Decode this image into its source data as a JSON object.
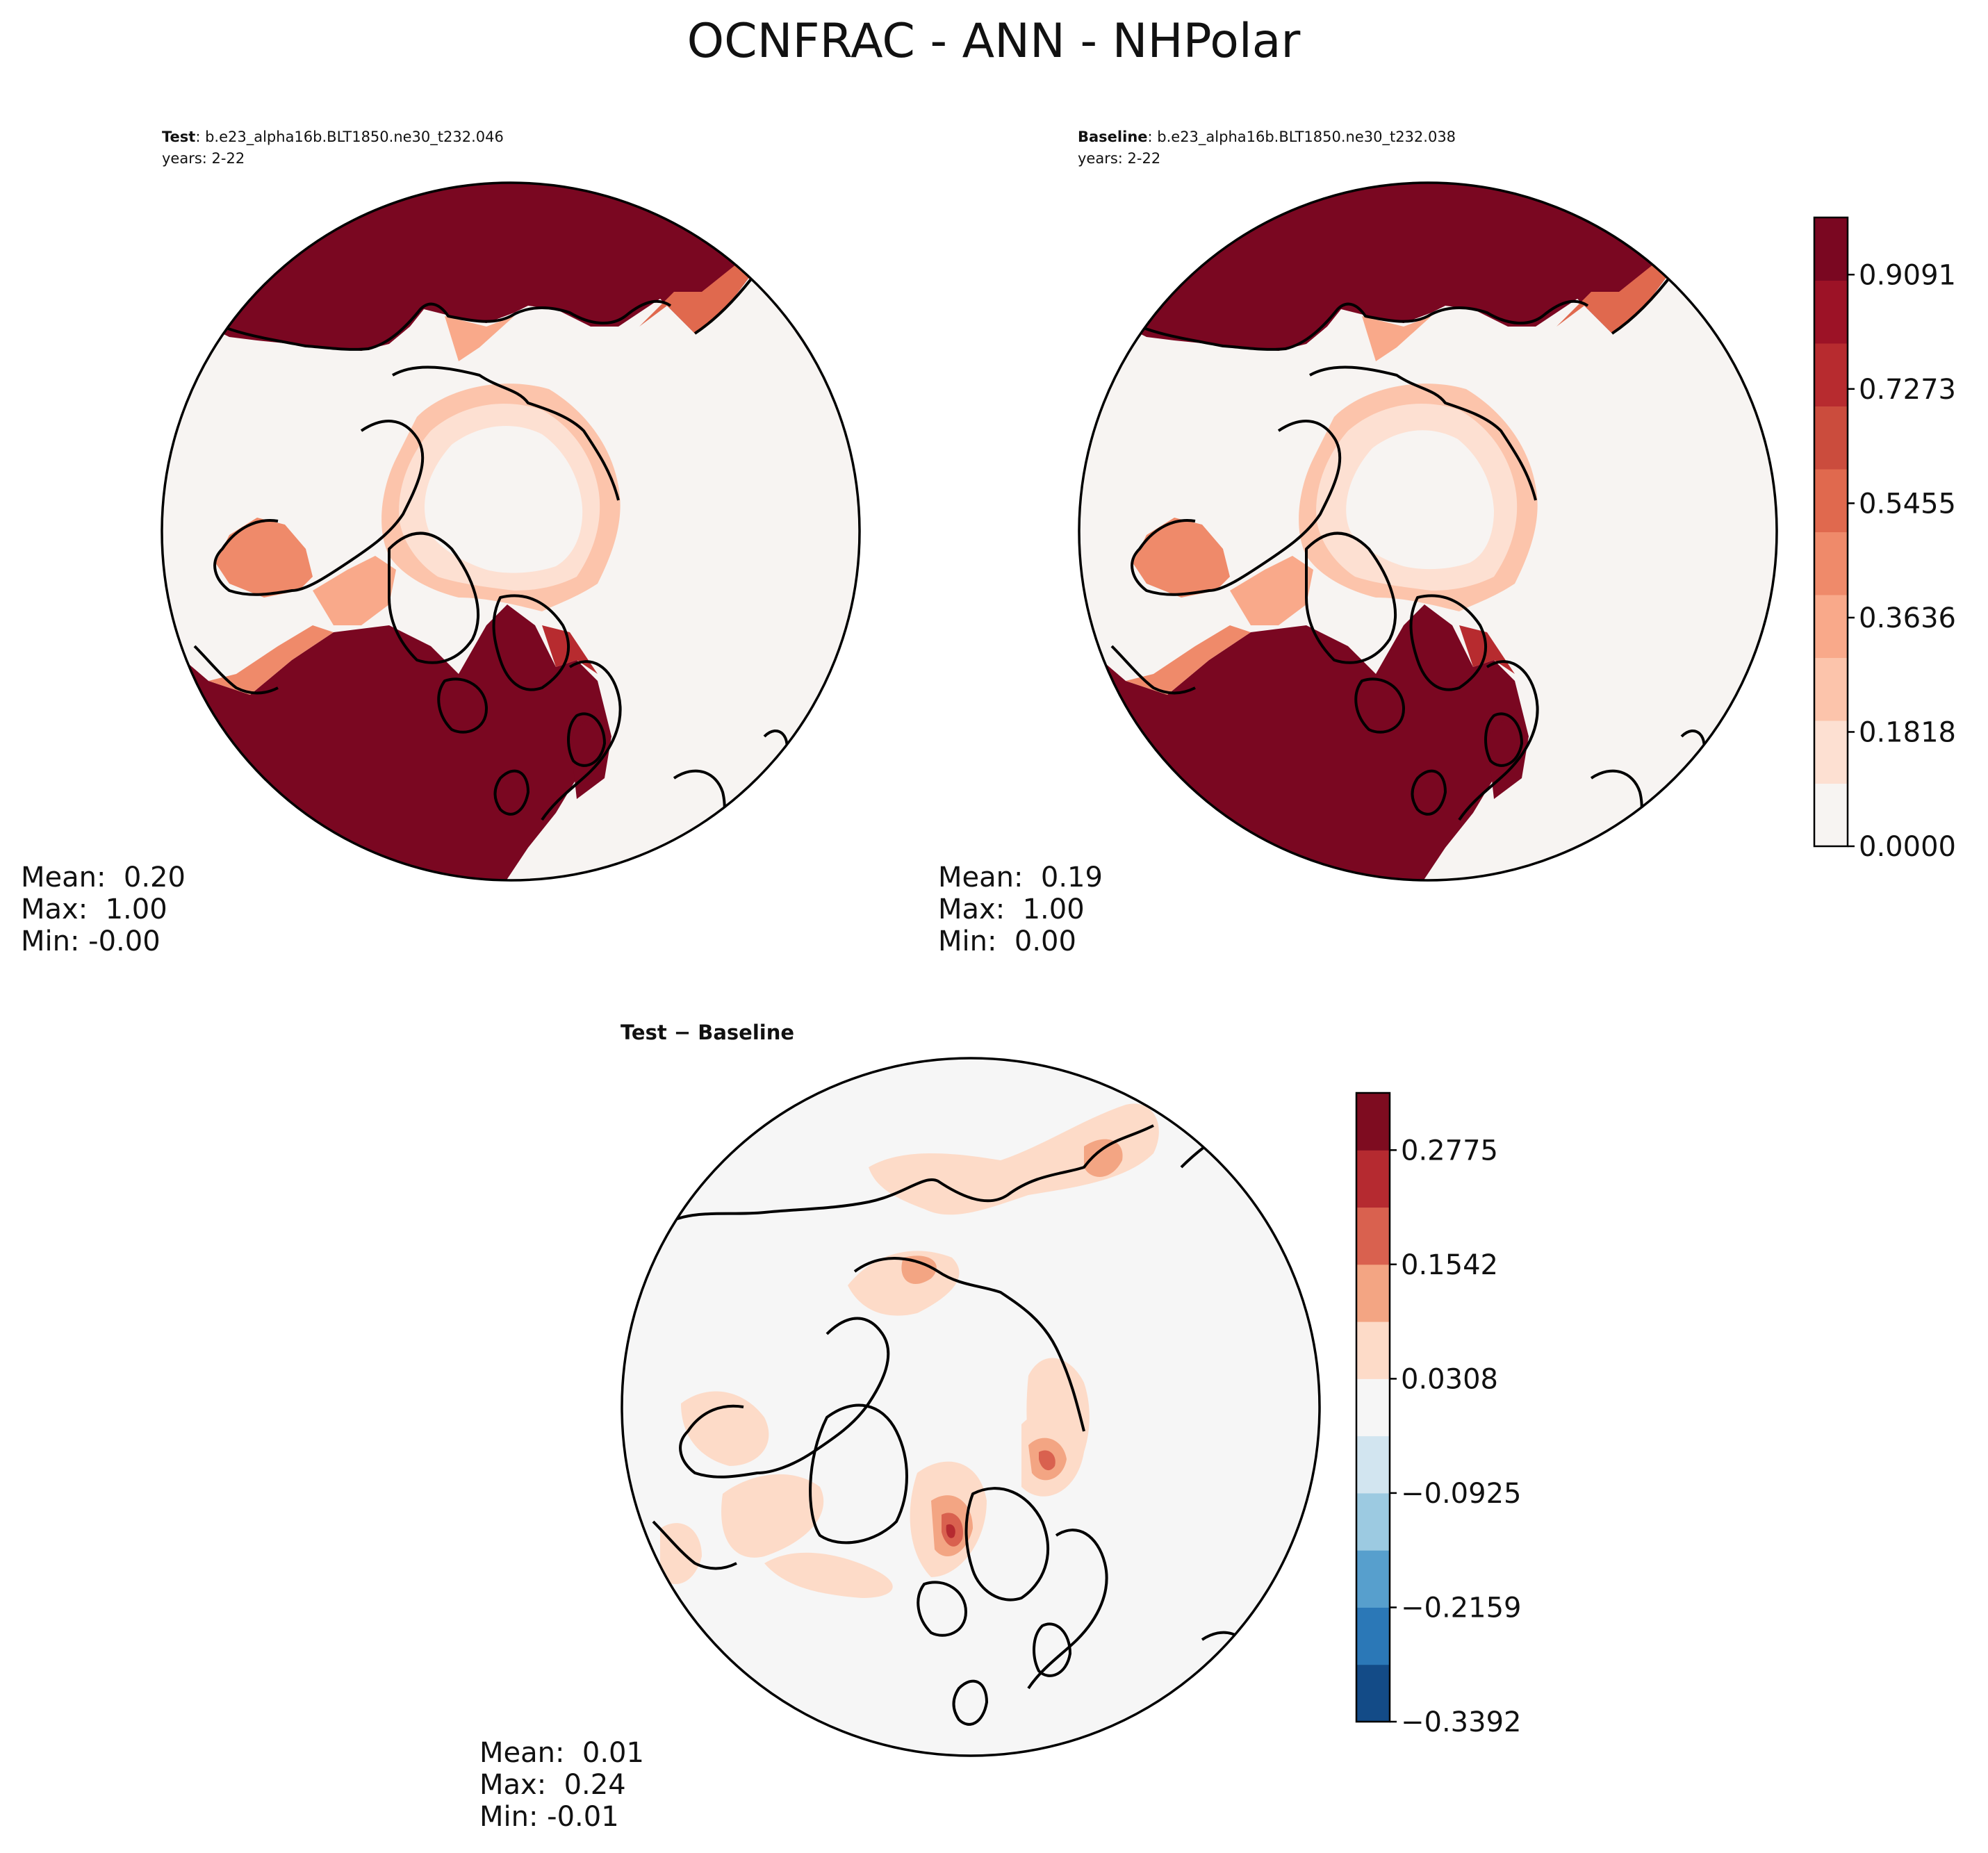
{
  "figure": {
    "title": "OCNFRAC - ANN - NHPolar"
  },
  "panels": [
    {
      "id": "test",
      "label": "Test",
      "case": ": b.e23_alpha16b.BLT1850.ne30_t232.046",
      "years": "years: 2-22",
      "stats": {
        "mean": "Mean:  0.20",
        "max": "Max:  1.00",
        "min": "Min: -0.00"
      }
    },
    {
      "id": "baseline",
      "label": "Baseline",
      "case": ": b.e23_alpha16b.BLT1850.ne30_t232.038",
      "years": "years: 2-22",
      "stats": {
        "mean": "Mean:  0.19",
        "max": "Max:  1.00",
        "min": "Min:  0.00"
      }
    },
    {
      "id": "diff",
      "label": "Test − Baseline",
      "stats": {
        "mean": "Mean:  0.01",
        "max": "Max:  0.24",
        "min": "Min: -0.01"
      }
    }
  ],
  "chart_data": [
    {
      "type": "heatmap",
      "projection": "north-polar-stereographic",
      "variable": "OCNFRAC",
      "season": "ANN",
      "region": "NHPolar",
      "colorbar": {
        "cmap": "Reds",
        "vmin": 0.0,
        "vmax": 1.0,
        "ticks": [
          0.0,
          0.1818,
          0.3636,
          0.5455,
          0.7273,
          0.9091
        ],
        "tick_labels": [
          "0.0000",
          "0.1818",
          "0.3636",
          "0.5455",
          "0.7273",
          "0.9091"
        ],
        "colors": [
          "#f7f4f2",
          "#fde0d2",
          "#fcc4ab",
          "#f9a98a",
          "#ef8a6a",
          "#e0694e",
          "#cb4c3d",
          "#b72b2f",
          "#9c1226",
          "#7a0721"
        ]
      }
    },
    {
      "type": "heatmap",
      "projection": "north-polar-stereographic",
      "variable": "OCNFRAC difference",
      "colorbar": {
        "cmap": "RdBu_r",
        "vmin": -0.3392,
        "vmax": 0.3392,
        "ticks": [
          -0.3392,
          -0.2159,
          -0.0925,
          0.0308,
          0.1542,
          0.2775
        ],
        "tick_labels": [
          "−0.3392",
          "−0.2159",
          "−0.0925",
          "0.0308",
          "0.1542",
          "0.2775"
        ],
        "colors": [
          "#134b87",
          "#2b78b7",
          "#579fcd",
          "#9ccae1",
          "#d2e5f0",
          "#f6f6f6",
          "#fddbc8",
          "#f3a583",
          "#d9614f",
          "#b52a30",
          "#7e0c20"
        ]
      }
    }
  ]
}
